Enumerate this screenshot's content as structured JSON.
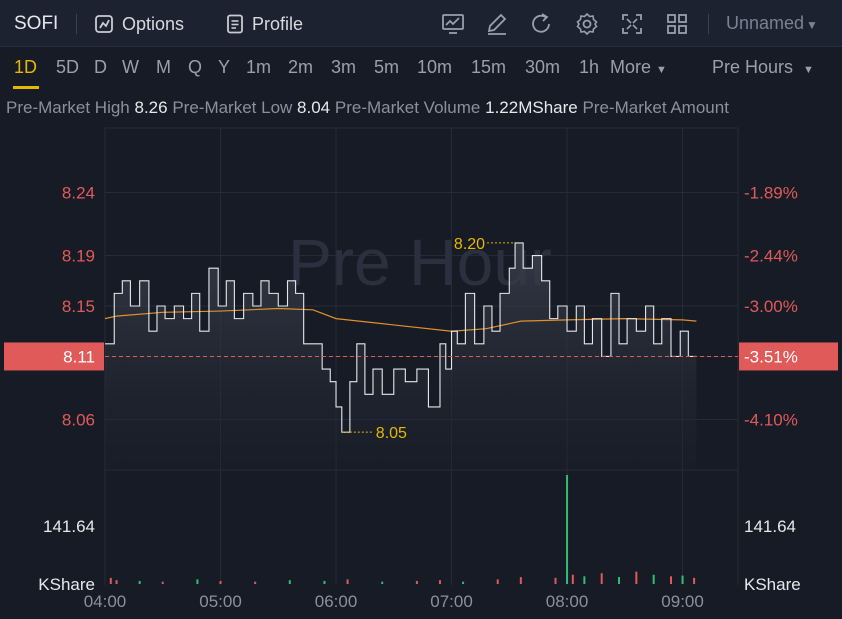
{
  "header": {
    "ticker": "SOFI",
    "options_label": "Options",
    "profile_label": "Profile",
    "layout_name": "Unnamed",
    "tools": [
      "chart-line-icon",
      "pencil-icon",
      "refresh-icon",
      "gear-icon",
      "fullscreen-icon",
      "grid-icon"
    ]
  },
  "timeframes": [
    "1D",
    "5D",
    "D",
    "W",
    "M",
    "Q",
    "Y",
    "1m",
    "2m",
    "3m",
    "5m",
    "10m",
    "15m",
    "30m",
    "1h"
  ],
  "active_timeframe": "1D",
  "more_label": "More",
  "session_label": "Pre Hours",
  "stats": {
    "high_label": "Pre-Market High",
    "high_value": "8.26",
    "low_label": "Pre-Market Low",
    "low_value": "8.04",
    "volume_label": "Pre-Market Volume",
    "volume_value": "1.22MShare",
    "amount_label": "Pre-Market Amount"
  },
  "watermark": "Pre Hour",
  "colors": {
    "up": "#e05a5a",
    "down": "#2fbf71",
    "price": "#e6e8ec",
    "avg": "#e0902a",
    "accent": "#e6b800"
  },
  "chart_data": {
    "type": "line",
    "x_ticks": [
      "04:00",
      "05:00",
      "06:00",
      "07:00",
      "08:00",
      "09:00"
    ],
    "y_ticks": [
      "8.24",
      "8.19",
      "8.15",
      "8.11",
      "8.06"
    ],
    "y_ticks_right": [
      "-1.89%",
      "-2.44%",
      "-3.00%",
      "-3.51%",
      "-4.10%"
    ],
    "ylim": [
      8.02,
      8.28
    ],
    "current_price": "8.11",
    "current_change": "-3.51%",
    "max_label": "8.20",
    "max_point": [
      7.55,
      8.2
    ],
    "min_label": "8.05",
    "min_point": [
      6.05,
      8.05
    ],
    "volume_axis_value": "141.64",
    "volume_unit": "KShare",
    "price_series": [
      [
        4.0,
        8.12
      ],
      [
        4.08,
        8.16
      ],
      [
        4.15,
        8.17
      ],
      [
        4.22,
        8.15
      ],
      [
        4.3,
        8.17
      ],
      [
        4.38,
        8.13
      ],
      [
        4.45,
        8.15
      ],
      [
        4.52,
        8.14
      ],
      [
        4.6,
        8.15
      ],
      [
        4.68,
        8.14
      ],
      [
        4.75,
        8.16
      ],
      [
        4.82,
        8.13
      ],
      [
        4.9,
        8.18
      ],
      [
        4.98,
        8.15
      ],
      [
        5.05,
        8.17
      ],
      [
        5.12,
        8.14
      ],
      [
        5.2,
        8.16
      ],
      [
        5.28,
        8.15
      ],
      [
        5.35,
        8.17
      ],
      [
        5.42,
        8.16
      ],
      [
        5.5,
        8.15
      ],
      [
        5.58,
        8.17
      ],
      [
        5.65,
        8.16
      ],
      [
        5.72,
        8.12
      ],
      [
        5.8,
        8.12
      ],
      [
        5.88,
        8.1
      ],
      [
        5.95,
        8.09
      ],
      [
        6.0,
        8.07
      ],
      [
        6.05,
        8.05
      ],
      [
        6.12,
        8.09
      ],
      [
        6.18,
        8.12
      ],
      [
        6.25,
        8.08
      ],
      [
        6.32,
        8.1
      ],
      [
        6.4,
        8.08
      ],
      [
        6.5,
        8.1
      ],
      [
        6.6,
        8.09
      ],
      [
        6.7,
        8.1
      ],
      [
        6.8,
        8.07
      ],
      [
        6.9,
        8.12
      ],
      [
        6.95,
        8.1
      ],
      [
        7.0,
        8.13
      ],
      [
        7.05,
        8.12
      ],
      [
        7.12,
        8.16
      ],
      [
        7.2,
        8.12
      ],
      [
        7.28,
        8.15
      ],
      [
        7.35,
        8.13
      ],
      [
        7.42,
        8.16
      ],
      [
        7.5,
        8.18
      ],
      [
        7.55,
        8.2
      ],
      [
        7.62,
        8.18
      ],
      [
        7.7,
        8.19
      ],
      [
        7.78,
        8.17
      ],
      [
        7.85,
        8.14
      ],
      [
        7.92,
        8.15
      ],
      [
        8.0,
        8.13
      ],
      [
        8.08,
        8.15
      ],
      [
        8.15,
        8.12
      ],
      [
        8.22,
        8.14
      ],
      [
        8.3,
        8.11
      ],
      [
        8.38,
        8.16
      ],
      [
        8.45,
        8.12
      ],
      [
        8.52,
        8.14
      ],
      [
        8.6,
        8.13
      ],
      [
        8.68,
        8.15
      ],
      [
        8.75,
        8.12
      ],
      [
        8.82,
        8.14
      ],
      [
        8.9,
        8.11
      ],
      [
        8.98,
        8.13
      ],
      [
        9.05,
        8.11
      ],
      [
        9.12,
        8.11
      ]
    ],
    "avg_series": [
      [
        4.0,
        8.14
      ],
      [
        4.1,
        8.142
      ],
      [
        4.5,
        8.145
      ],
      [
        5.0,
        8.146
      ],
      [
        5.5,
        8.148
      ],
      [
        5.8,
        8.147
      ],
      [
        6.0,
        8.14
      ],
      [
        6.5,
        8.135
      ],
      [
        7.0,
        8.13
      ],
      [
        7.3,
        8.132
      ],
      [
        7.6,
        8.138
      ],
      [
        8.0,
        8.139
      ],
      [
        8.5,
        8.14
      ],
      [
        9.0,
        8.139
      ],
      [
        9.12,
        8.138
      ]
    ],
    "volume_series": [
      [
        4.05,
        8,
        1
      ],
      [
        4.1,
        5,
        1
      ],
      [
        4.3,
        4,
        0
      ],
      [
        4.5,
        3,
        1
      ],
      [
        4.8,
        6,
        0
      ],
      [
        5.0,
        4,
        1
      ],
      [
        5.3,
        3,
        1
      ],
      [
        5.6,
        5,
        0
      ],
      [
        5.9,
        4,
        0
      ],
      [
        6.1,
        6,
        1
      ],
      [
        6.4,
        3,
        0
      ],
      [
        6.7,
        4,
        1
      ],
      [
        6.9,
        5,
        1
      ],
      [
        7.1,
        3,
        0
      ],
      [
        7.4,
        6,
        1
      ],
      [
        7.6,
        9,
        1
      ],
      [
        7.9,
        8,
        1
      ],
      [
        8.0,
        141.64,
        0
      ],
      [
        8.05,
        12,
        1
      ],
      [
        8.15,
        10,
        0
      ],
      [
        8.3,
        14,
        1
      ],
      [
        8.45,
        9,
        0
      ],
      [
        8.6,
        16,
        1
      ],
      [
        8.75,
        12,
        0
      ],
      [
        8.9,
        10,
        1
      ],
      [
        9.0,
        11,
        0
      ],
      [
        9.1,
        8,
        1
      ]
    ]
  }
}
